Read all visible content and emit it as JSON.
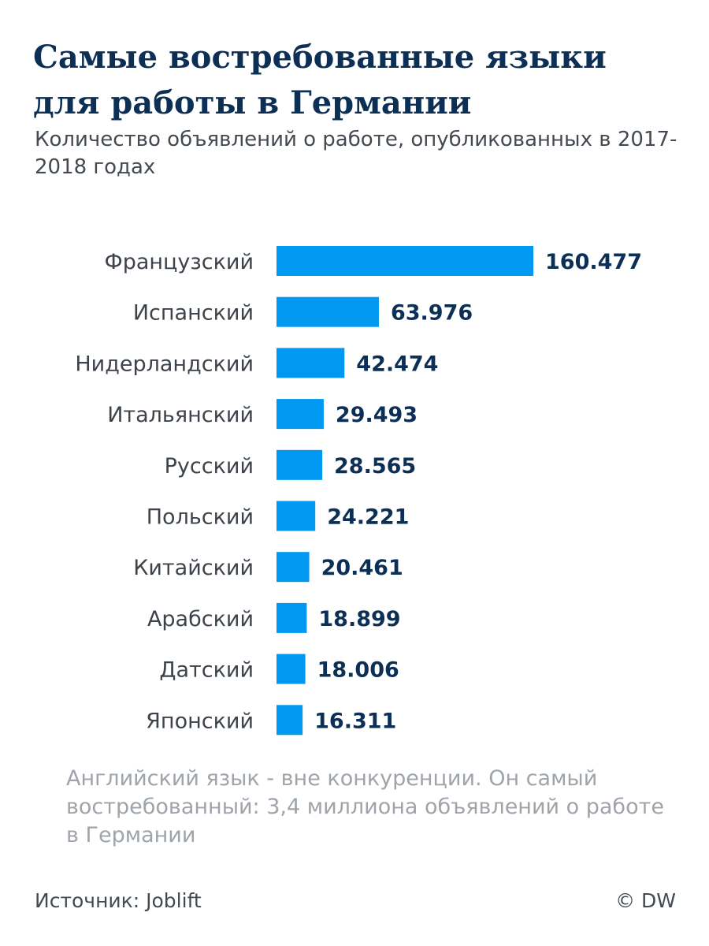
{
  "header": {
    "title": "Самые востребованные языки для работы в Германии",
    "subtitle": "Количество объявлений о работе, опубликованных в 2017-2018 годах"
  },
  "chart_data": {
    "type": "bar",
    "orientation": "horizontal",
    "title": "Самые востребованные языки для работы в Германии",
    "subtitle": "Количество объявлений о работе, опубликованных в 2017-2018 годах",
    "categories": [
      "Французский",
      "Испанский",
      "Нидерландский",
      "Итальянский",
      "Русский",
      "Польский",
      "Китайский",
      "Арабский",
      "Датский",
      "Японский"
    ],
    "values": [
      160477,
      63976,
      42474,
      29493,
      28565,
      24221,
      20461,
      18899,
      18006,
      16311
    ],
    "value_labels": [
      "160.477",
      "63.976",
      "42.474",
      "29.493",
      "28.565",
      "24.221",
      "20.461",
      "18.899",
      "18.006",
      "16.311"
    ],
    "xlabel": "",
    "ylabel": "",
    "grid": false,
    "legend": "none",
    "bar_color": "#0098f0"
  },
  "footer": {
    "note": "Английский язык - вне конкуренции. Он самый востребованный: 3,4 миллиона объявлений о работе в Германии",
    "source": "Источник: Joblift",
    "copyright": "© DW"
  },
  "colors": {
    "title": "#0c2f55",
    "value_text": "#0c2f55",
    "bar": "#0098f0",
    "note_text": "#9ea4aa"
  }
}
